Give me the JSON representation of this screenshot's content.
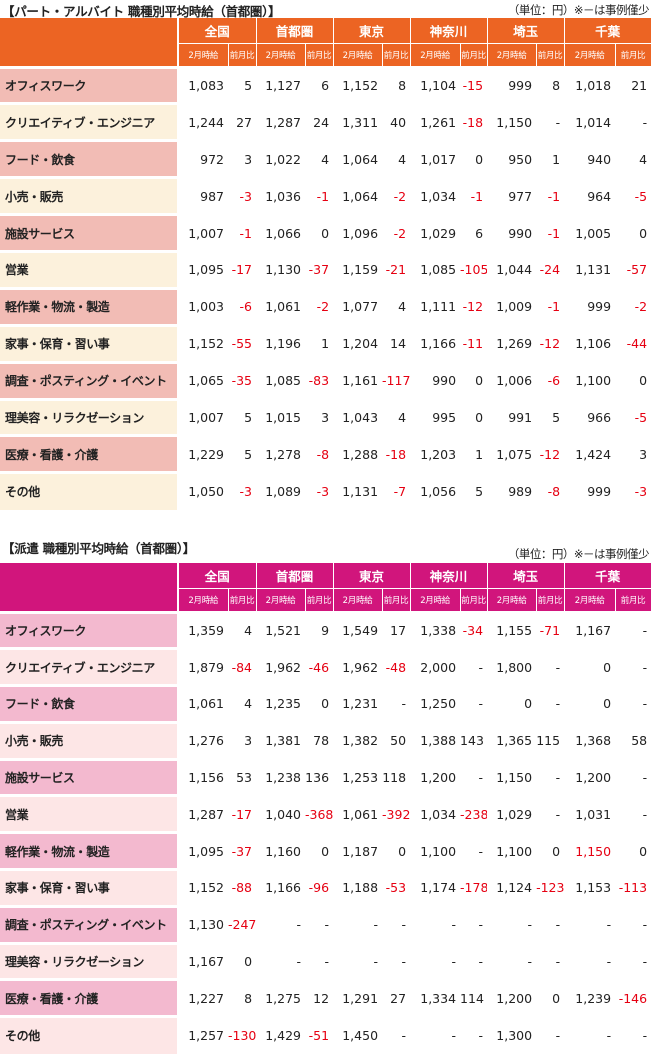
{
  "section1": {
    "title": "【パート・アルバイト 職種別平均時給（首都圏）】",
    "unit_note": "（単位：円）※－は事例僅少",
    "regions": [
      "全国",
      "首都圏",
      "東京",
      "神奈川",
      "埼玉",
      "千葉"
    ],
    "sub_headers": [
      "2月時給",
      "前月比"
    ],
    "rows": [
      {
        "label": "オフィスワーク",
        "values": [
          "1,083",
          "5",
          "1,127",
          "6",
          "1,152",
          "8",
          "1,104",
          "-15",
          "999",
          "8",
          "1,018",
          "21"
        ]
      },
      {
        "label": "クリエイティブ・エンジニア",
        "values": [
          "1,244",
          "27",
          "1,287",
          "24",
          "1,311",
          "40",
          "1,261",
          "-18",
          "1,150",
          "-",
          "1,014",
          "-"
        ]
      },
      {
        "label": "フード・飲食",
        "values": [
          "972",
          "3",
          "1,022",
          "4",
          "1,064",
          "4",
          "1,017",
          "0",
          "950",
          "1",
          "940",
          "4"
        ]
      },
      {
        "label": "小売・販売",
        "values": [
          "987",
          "-3",
          "1,036",
          "-1",
          "1,064",
          "-2",
          "1,034",
          "-1",
          "977",
          "-1",
          "964",
          "-5"
        ]
      },
      {
        "label": "施設サービス",
        "values": [
          "1,007",
          "-1",
          "1,066",
          "0",
          "1,096",
          "-2",
          "1,029",
          "6",
          "990",
          "-1",
          "1,005",
          "0"
        ]
      },
      {
        "label": "営業",
        "values": [
          "1,095",
          "-17",
          "1,130",
          "-37",
          "1,159",
          "-21",
          "1,085",
          "-105",
          "1,044",
          "-24",
          "1,131",
          "-57"
        ]
      },
      {
        "label": "軽作業・物流・製造",
        "values": [
          "1,003",
          "-6",
          "1,061",
          "-2",
          "1,077",
          "4",
          "1,111",
          "-12",
          "1,009",
          "-1",
          "999",
          "-2"
        ]
      },
      {
        "label": "家事・保育・習い事",
        "values": [
          "1,152",
          "-55",
          "1,196",
          "1",
          "1,204",
          "14",
          "1,166",
          "-11",
          "1,269",
          "-12",
          "1,106",
          "-44"
        ]
      },
      {
        "label": "調査・ポスティング・イベント",
        "values": [
          "1,065",
          "-35",
          "1,085",
          "-83",
          "1,161",
          "-117",
          "990",
          "0",
          "1,006",
          "-6",
          "1,100",
          "0"
        ]
      },
      {
        "label": "理美容・リラクゼーション",
        "values": [
          "1,007",
          "5",
          "1,015",
          "3",
          "1,043",
          "4",
          "995",
          "0",
          "991",
          "5",
          "966",
          "-5"
        ]
      },
      {
        "label": "医療・看護・介護",
        "values": [
          "1,229",
          "5",
          "1,278",
          "-8",
          "1,288",
          "-18",
          "1,203",
          "1",
          "1,075",
          "-12",
          "1,424",
          "3"
        ]
      },
      {
        "label": "その他",
        "values": [
          "1,050",
          "-3",
          "1,089",
          "-3",
          "1,131",
          "-7",
          "1,056",
          "5",
          "989",
          "-8",
          "999",
          "-3"
        ]
      }
    ]
  },
  "section2": {
    "title": "【派遣 職種別平均時給（首都圏）】",
    "unit_note": "（単位：円）※－は事例僅少",
    "regions": [
      "全国",
      "首都圏",
      "東京",
      "神奈川",
      "埼玉",
      "千葉"
    ],
    "sub_headers": [
      "2月時給",
      "前月比"
    ],
    "rows": [
      {
        "label": "オフィスワーク",
        "values": [
          "1,359",
          "4",
          "1,521",
          "9",
          "1,549",
          "17",
          "1,338",
          "-34",
          "1,155",
          "-71",
          "1,167",
          "-"
        ]
      },
      {
        "label": "クリエイティブ・エンジニア",
        "values": [
          "1,879",
          "-84",
          "1,962",
          "-46",
          "1,962",
          "-48",
          "2,000",
          "-",
          "1,800",
          "-",
          "0",
          "-"
        ]
      },
      {
        "label": "フード・飲食",
        "values": [
          "1,061",
          "4",
          "1,235",
          "0",
          "1,231",
          "-",
          "1,250",
          "-",
          "0",
          "-",
          "0",
          "-"
        ]
      },
      {
        "label": "小売・販売",
        "values": [
          "1,276",
          "3",
          "1,381",
          "78",
          "1,382",
          "50",
          "1,388",
          "143",
          "1,365",
          "115",
          "1,368",
          "58"
        ]
      },
      {
        "label": "施設サービス",
        "values": [
          "1,156",
          "53",
          "1,238",
          "136",
          "1,253",
          "118",
          "1,200",
          "-",
          "1,150",
          "-",
          "1,200",
          "-"
        ]
      },
      {
        "label": "営業",
        "values": [
          "1,287",
          "-17",
          "1,040",
          "-368",
          "1,061",
          "-392",
          "1,034",
          "-238",
          "1,029",
          "-",
          "1,031",
          "-"
        ]
      },
      {
        "label": "軽作業・物流・製造",
        "values": [
          "1,095",
          "-37",
          "1,160",
          "0",
          "1,187",
          "0",
          "1,100",
          "-",
          "1,100",
          "0",
          "1,150",
          "0"
        ]
      },
      {
        "label": "家事・保育・習い事",
        "values": [
          "1,152",
          "-88",
          "1,166",
          "-96",
          "1,188",
          "-53",
          "1,174",
          "-178",
          "1,124",
          "-123",
          "1,153",
          "-113"
        ]
      },
      {
        "label": "調査・ポスティング・イベント",
        "values": [
          "1,130",
          "-247",
          "-",
          "-",
          "-",
          "-",
          "-",
          "-",
          "-",
          "-",
          "-",
          "-"
        ]
      },
      {
        "label": "理美容・リラクゼーション",
        "values": [
          "1,167",
          "0",
          "-",
          "-",
          "-",
          "-",
          "-",
          "-",
          "-",
          "-",
          "-",
          "-"
        ]
      },
      {
        "label": "医療・看護・介護",
        "values": [
          "1,227",
          "8",
          "1,275",
          "12",
          "1,291",
          "27",
          "1,334",
          "114",
          "1,200",
          "0",
          "1,239",
          "-146"
        ]
      },
      {
        "label": "その他",
        "values": [
          "1,257",
          "-130",
          "1,429",
          "-51",
          "1,450",
          "-",
          "-",
          "-",
          "1,300",
          "-",
          "-",
          "-"
        ]
      }
    ]
  },
  "colors": {
    "part_time_header": "#ec6423",
    "part_time_row_odd": "#f2bcb5",
    "part_time_row_even": "#fcf1dc",
    "dispatch_header": "#d1157c",
    "dispatch_row_odd": "#f3b9cf",
    "dispatch_row_even": "#fde6e6",
    "negative_value": "#e60012"
  }
}
